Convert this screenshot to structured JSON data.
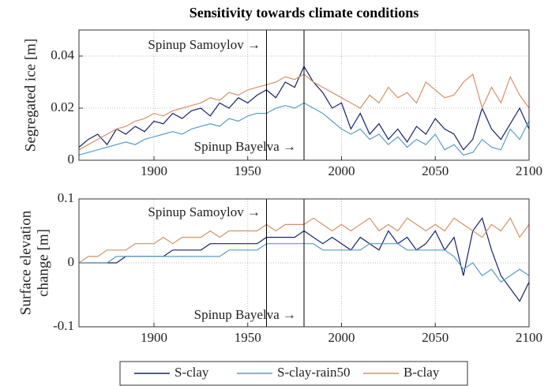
{
  "title": "Sensitivity towards climate conditions",
  "chart_data": [
    {
      "type": "line",
      "ylabel": "Segregated ice [m]",
      "x": [
        1860,
        1865,
        1870,
        1875,
        1880,
        1885,
        1890,
        1895,
        1900,
        1905,
        1910,
        1915,
        1920,
        1925,
        1930,
        1935,
        1940,
        1945,
        1950,
        1955,
        1960,
        1965,
        1970,
        1975,
        1980,
        1985,
        1990,
        1995,
        2000,
        2005,
        2010,
        2015,
        2020,
        2025,
        2030,
        2035,
        2040,
        2045,
        2050,
        2055,
        2060,
        2065,
        2070,
        2075,
        2080,
        2085,
        2090,
        2095,
        2100
      ],
      "xlim": [
        1860,
        2100
      ],
      "xticks": [
        1900,
        1950,
        2000,
        2050,
        2100
      ],
      "ylim": [
        0,
        0.05
      ],
      "yticks": [
        0,
        0.02,
        0.04
      ],
      "grid": true,
      "vlines": [
        1960,
        1980
      ],
      "annotations": [
        "Spinup Samoylov →",
        "Spinup Bayelva →"
      ],
      "series": [
        {
          "name": "S-clay",
          "color": "#16226b",
          "values": [
            0.005,
            0.008,
            0.01,
            0.006,
            0.012,
            0.01,
            0.013,
            0.011,
            0.015,
            0.014,
            0.018,
            0.016,
            0.019,
            0.02,
            0.017,
            0.022,
            0.02,
            0.024,
            0.022,
            0.025,
            0.027,
            0.024,
            0.03,
            0.028,
            0.036,
            0.03,
            0.026,
            0.02,
            0.022,
            0.012,
            0.018,
            0.01,
            0.014,
            0.008,
            0.012,
            0.007,
            0.013,
            0.01,
            0.016,
            0.012,
            0.01,
            0.004,
            0.008,
            0.02,
            0.012,
            0.008,
            0.014,
            0.02,
            0.012
          ]
        },
        {
          "name": "S-clay-rain50",
          "color": "#5a9cc6",
          "values": [
            0.002,
            0.003,
            0.004,
            0.005,
            0.006,
            0.007,
            0.006,
            0.008,
            0.009,
            0.01,
            0.011,
            0.01,
            0.012,
            0.013,
            0.014,
            0.013,
            0.016,
            0.015,
            0.017,
            0.018,
            0.018,
            0.02,
            0.021,
            0.02,
            0.022,
            0.02,
            0.018,
            0.015,
            0.012,
            0.01,
            0.012,
            0.008,
            0.01,
            0.006,
            0.009,
            0.005,
            0.008,
            0.006,
            0.01,
            0.004,
            0.006,
            0.002,
            0.003,
            0.008,
            0.005,
            0.004,
            0.012,
            0.008,
            0.015
          ]
        },
        {
          "name": "B-clay",
          "color": "#d5916a",
          "values": [
            0.004,
            0.006,
            0.008,
            0.01,
            0.012,
            0.013,
            0.015,
            0.016,
            0.018,
            0.017,
            0.019,
            0.02,
            0.021,
            0.022,
            0.024,
            0.023,
            0.026,
            0.025,
            0.027,
            0.028,
            0.029,
            0.03,
            0.032,
            0.031,
            0.033,
            0.03,
            0.028,
            0.026,
            0.024,
            0.022,
            0.02,
            0.025,
            0.022,
            0.028,
            0.024,
            0.026,
            0.022,
            0.03,
            0.027,
            0.024,
            0.025,
            0.03,
            0.033,
            0.02,
            0.028,
            0.022,
            0.032,
            0.025,
            0.02
          ]
        }
      ]
    },
    {
      "type": "line",
      "ylabel": [
        "Surface elevation",
        "change [m]"
      ],
      "x": [
        1860,
        1865,
        1870,
        1875,
        1880,
        1885,
        1890,
        1895,
        1900,
        1905,
        1910,
        1915,
        1920,
        1925,
        1930,
        1935,
        1940,
        1945,
        1950,
        1955,
        1960,
        1965,
        1970,
        1975,
        1980,
        1985,
        1990,
        1995,
        2000,
        2005,
        2010,
        2015,
        2020,
        2025,
        2030,
        2035,
        2040,
        2045,
        2050,
        2055,
        2060,
        2065,
        2070,
        2075,
        2080,
        2085,
        2090,
        2095,
        2100
      ],
      "xlim": [
        1860,
        2100
      ],
      "xticks": [
        1900,
        1950,
        2000,
        2050,
        2100
      ],
      "ylim": [
        -0.1,
        0.1
      ],
      "yticks": [
        -0.1,
        0,
        0.1
      ],
      "grid": true,
      "vlines": [
        1960,
        1980
      ],
      "annotations": [
        "Spinup Samoylov →",
        "Spinup Bayelva →"
      ],
      "series": [
        {
          "color": "#16226b",
          "values": [
            0,
            0,
            0,
            0,
            0,
            0.01,
            0.01,
            0.01,
            0.01,
            0.01,
            0.02,
            0.02,
            0.02,
            0.02,
            0.03,
            0.03,
            0.03,
            0.03,
            0.03,
            0.03,
            0.04,
            0.04,
            0.04,
            0.04,
            0.05,
            0.04,
            0.03,
            0.04,
            0.03,
            0.02,
            0.04,
            0.03,
            0.02,
            0.05,
            0.03,
            0.04,
            0.02,
            0.03,
            0.05,
            0.02,
            0.04,
            -0.02,
            0.05,
            0.07,
            0.02,
            -0.02,
            -0.04,
            -0.06,
            -0.03
          ]
        },
        {
          "color": "#5a9cc6",
          "values": [
            0,
            0,
            0,
            0,
            0.01,
            0.01,
            0.01,
            0.01,
            0.01,
            0.01,
            0.01,
            0.01,
            0.01,
            0.01,
            0.01,
            0.01,
            0.02,
            0.02,
            0.02,
            0.02,
            0.03,
            0.03,
            0.03,
            0.03,
            0.03,
            0.03,
            0.02,
            0.02,
            0.02,
            0.02,
            0.02,
            0.03,
            0.03,
            0.03,
            0.03,
            0.02,
            0.02,
            0.02,
            0.02,
            0.02,
            0.01,
            -0.01,
            0,
            -0.02,
            -0.01,
            -0.03,
            -0.02,
            -0.01,
            -0.02
          ]
        },
        {
          "color": "#d5916a",
          "values": [
            0,
            0.01,
            0.01,
            0.02,
            0.02,
            0.02,
            0.03,
            0.03,
            0.03,
            0.04,
            0.03,
            0.04,
            0.04,
            0.04,
            0.05,
            0.04,
            0.05,
            0.05,
            0.05,
            0.05,
            0.06,
            0.05,
            0.06,
            0.06,
            0.06,
            0.07,
            0.06,
            0.05,
            0.06,
            0.05,
            0.06,
            0.07,
            0.05,
            0.06,
            0.05,
            0.07,
            0.06,
            0.05,
            0.06,
            0.05,
            0.07,
            0.06,
            0.05,
            0.04,
            0.06,
            0.05,
            0.07,
            0.04,
            0.06
          ]
        }
      ]
    }
  ]
}
